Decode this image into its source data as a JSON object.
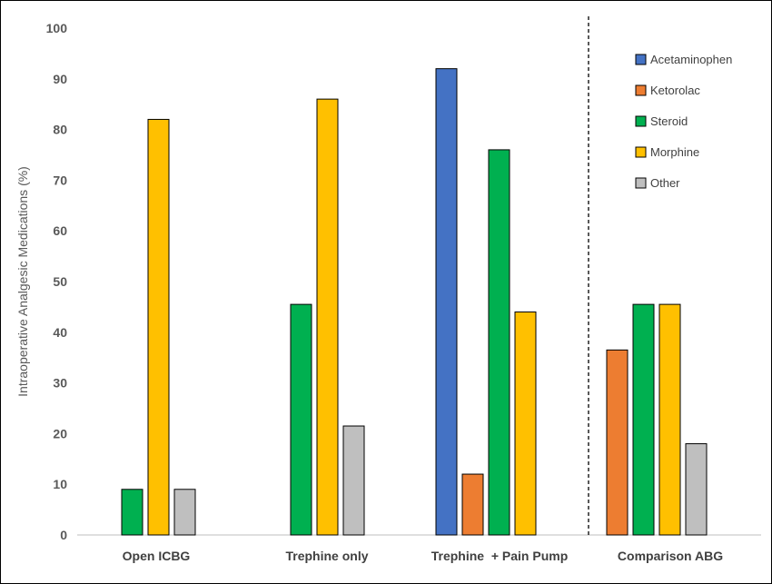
{
  "chart_data": {
    "type": "bar",
    "title": "",
    "xlabel": "",
    "ylabel": "Intraoperative Analgesic Medications (%)",
    "ylim": [
      0,
      100
    ],
    "yticks": [
      "0",
      "10",
      "20",
      "30",
      "40",
      "50",
      "60",
      "70",
      "80",
      "90",
      "100"
    ],
    "categories": [
      "Open ICBG",
      "Trephine only",
      "Trephine  + Pain Pump",
      "Comparison ABG"
    ],
    "legend_position": "top-right",
    "grid": false,
    "separator": "dashed vertical line before Comparison ABG",
    "series": [
      {
        "name": "Acetaminophen",
        "color": "#4472C4",
        "values": [
          null,
          null,
          92,
          null
        ]
      },
      {
        "name": "Ketorolac",
        "color": "#ED7D31",
        "values": [
          null,
          null,
          12,
          36.5
        ]
      },
      {
        "name": "Steroid",
        "color": "#00B050",
        "values": [
          9,
          45.5,
          76,
          45.5
        ]
      },
      {
        "name": "Morphine",
        "color": "#FFC000",
        "values": [
          82,
          86,
          44,
          45.5
        ]
      },
      {
        "name": "Other",
        "color": "#BFBFBF",
        "values": [
          9,
          21.5,
          null,
          18
        ]
      }
    ]
  }
}
